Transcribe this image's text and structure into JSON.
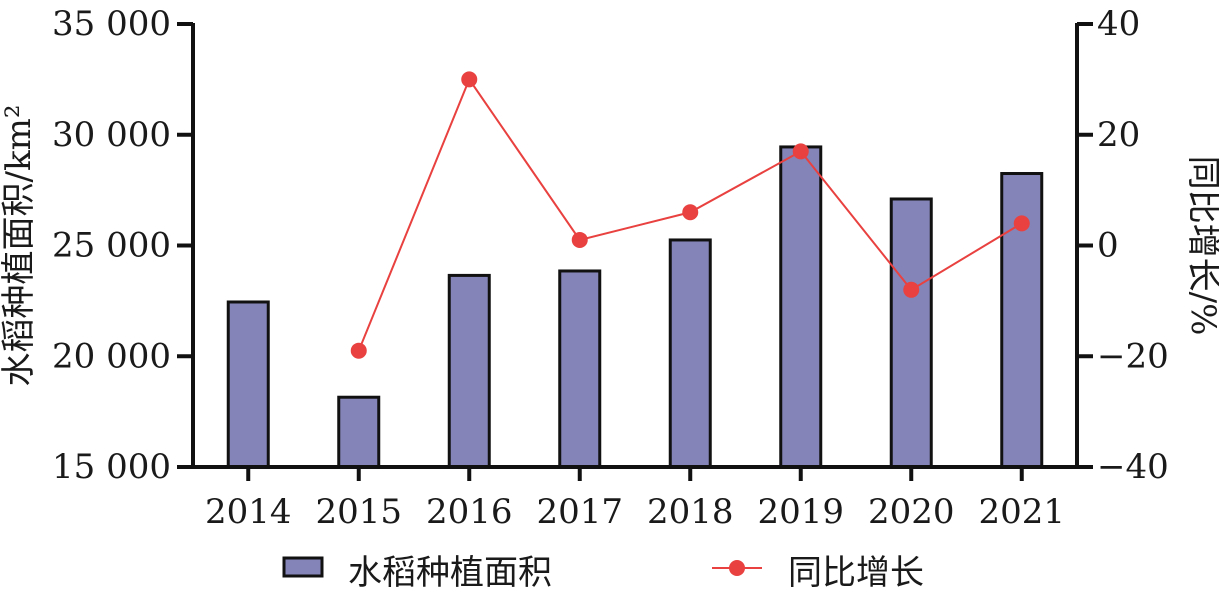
{
  "chart_data": {
    "type": "bar",
    "categories": [
      "2014",
      "2015",
      "2016",
      "2017",
      "2018",
      "2019",
      "2020",
      "2021"
    ],
    "series": [
      {
        "name": "水稻种植面积",
        "kind": "bar",
        "axis": "left",
        "color": "#8584b8",
        "values": [
          22450,
          18150,
          23650,
          23850,
          25250,
          29450,
          27100,
          28250
        ]
      },
      {
        "name": "同比增长",
        "kind": "line",
        "axis": "right",
        "color": "#e8413f",
        "values": [
          null,
          -19,
          30,
          1,
          6,
          17,
          -8,
          4
        ]
      }
    ],
    "ylabel": "水稻种植面积/km²",
    "ylabel_right": "同比增长/%",
    "ylim": [
      15000,
      35000
    ],
    "ylim_right": [
      -40,
      40
    ],
    "yticks": [
      {
        "value": 15000,
        "label": "15 000"
      },
      {
        "value": 20000,
        "label": "20 000"
      },
      {
        "value": 25000,
        "label": "25 000"
      },
      {
        "value": 30000,
        "label": "30 000"
      },
      {
        "value": 35000,
        "label": "35 000"
      }
    ],
    "yticks_right": [
      {
        "value": -40,
        "label": "−40"
      },
      {
        "value": -20,
        "label": "−20"
      },
      {
        "value": 0,
        "label": "0"
      },
      {
        "value": 20,
        "label": "20"
      },
      {
        "value": 40,
        "label": "40"
      }
    ],
    "grid": false,
    "legend_position": "bottom"
  }
}
